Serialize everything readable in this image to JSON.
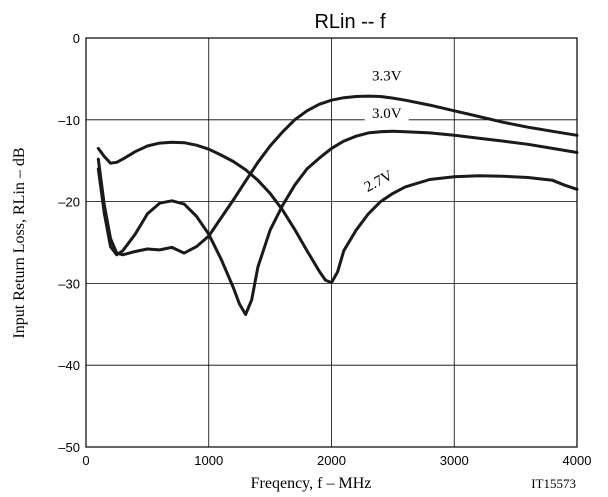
{
  "chart_data": {
    "type": "line",
    "title": "RLin  --  f",
    "xlabel": "Freqency, f  –  MHz",
    "ylabel": "Input Return Loss, RLin   –  dB",
    "xlim": [
      0,
      4000
    ],
    "ylim": [
      -50,
      0
    ],
    "xticks": [
      0,
      1000,
      2000,
      3000,
      4000
    ],
    "xtick_labels": [
      "0",
      "1000",
      "2000",
      "3000",
      "4000"
    ],
    "yticks": [
      0,
      -10,
      -20,
      -30,
      -40,
      -50
    ],
    "ytick_labels": [
      "0",
      "–10",
      "–20",
      "–30",
      "–40",
      "–50"
    ],
    "grid": true,
    "figure_code": "IT15573",
    "series": [
      {
        "name": "3.3V",
        "x": [
          100,
          150,
          200,
          250,
          300,
          400,
          500,
          600,
          700,
          800,
          900,
          1000,
          1100,
          1200,
          1300,
          1400,
          1500,
          1600,
          1700,
          1800,
          1900,
          2000,
          2100,
          2200,
          2300,
          2400,
          2500,
          2600,
          2800,
          3000,
          3200,
          3400,
          3600,
          3800,
          4000
        ],
        "values": [
          -14.8,
          -20.5,
          -24.5,
          -26.3,
          -26.5,
          -26.1,
          -25.8,
          -25.9,
          -25.6,
          -26.3,
          -25.5,
          -24.2,
          -22.0,
          -19.8,
          -17.5,
          -15.2,
          -13.2,
          -11.5,
          -10.0,
          -8.9,
          -8.1,
          -7.6,
          -7.3,
          -7.15,
          -7.1,
          -7.15,
          -7.35,
          -7.6,
          -8.2,
          -8.9,
          -9.6,
          -10.3,
          -10.9,
          -11.4,
          -11.9
        ]
      },
      {
        "name": "3.0V",
        "x": [
          100,
          150,
          200,
          250,
          300,
          400,
          500,
          600,
          700,
          800,
          900,
          1000,
          1100,
          1200,
          1250,
          1300,
          1350,
          1400,
          1500,
          1600,
          1700,
          1800,
          1900,
          2000,
          2100,
          2200,
          2300,
          2400,
          2500,
          2600,
          2800,
          3000,
          3200,
          3400,
          3600,
          3800,
          4000
        ],
        "values": [
          -16.0,
          -21.5,
          -25.5,
          -26.5,
          -26.0,
          -24.0,
          -21.5,
          -20.2,
          -19.9,
          -20.3,
          -21.8,
          -24.0,
          -27.0,
          -30.5,
          -32.5,
          -33.8,
          -32.0,
          -28.0,
          -23.5,
          -20.5,
          -18.0,
          -16.0,
          -14.7,
          -13.5,
          -12.6,
          -12.0,
          -11.6,
          -11.45,
          -11.4,
          -11.45,
          -11.6,
          -11.9,
          -12.25,
          -12.6,
          -13.0,
          -13.5,
          -14.0
        ]
      },
      {
        "name": "2.7V",
        "x": [
          100,
          150,
          200,
          250,
          300,
          400,
          500,
          600,
          700,
          800,
          900,
          1000,
          1100,
          1200,
          1300,
          1400,
          1500,
          1600,
          1700,
          1800,
          1900,
          1950,
          2000,
          2050,
          2100,
          2200,
          2300,
          2400,
          2500,
          2600,
          2800,
          3000,
          3200,
          3400,
          3600,
          3800,
          3900,
          4000
        ],
        "values": [
          -13.5,
          -14.5,
          -15.3,
          -15.2,
          -14.8,
          -13.9,
          -13.2,
          -12.85,
          -12.75,
          -12.8,
          -13.1,
          -13.6,
          -14.3,
          -15.1,
          -16.1,
          -17.4,
          -19.0,
          -21.0,
          -23.4,
          -26.0,
          -28.5,
          -29.6,
          -29.9,
          -28.6,
          -26.0,
          -23.5,
          -21.5,
          -20.0,
          -19.0,
          -18.2,
          -17.3,
          -16.95,
          -16.85,
          -16.9,
          -17.05,
          -17.4,
          -18.0,
          -18.5
        ]
      }
    ],
    "series_labels": [
      {
        "text": "3.3V",
        "x": 2450,
        "y": -5.2,
        "rotate": 0
      },
      {
        "text": "3.0V",
        "x": 2450,
        "y": -9.8,
        "rotate": 0
      },
      {
        "text": "2.7V",
        "x": 2400,
        "y": -18.0,
        "rotate": -28
      }
    ]
  }
}
